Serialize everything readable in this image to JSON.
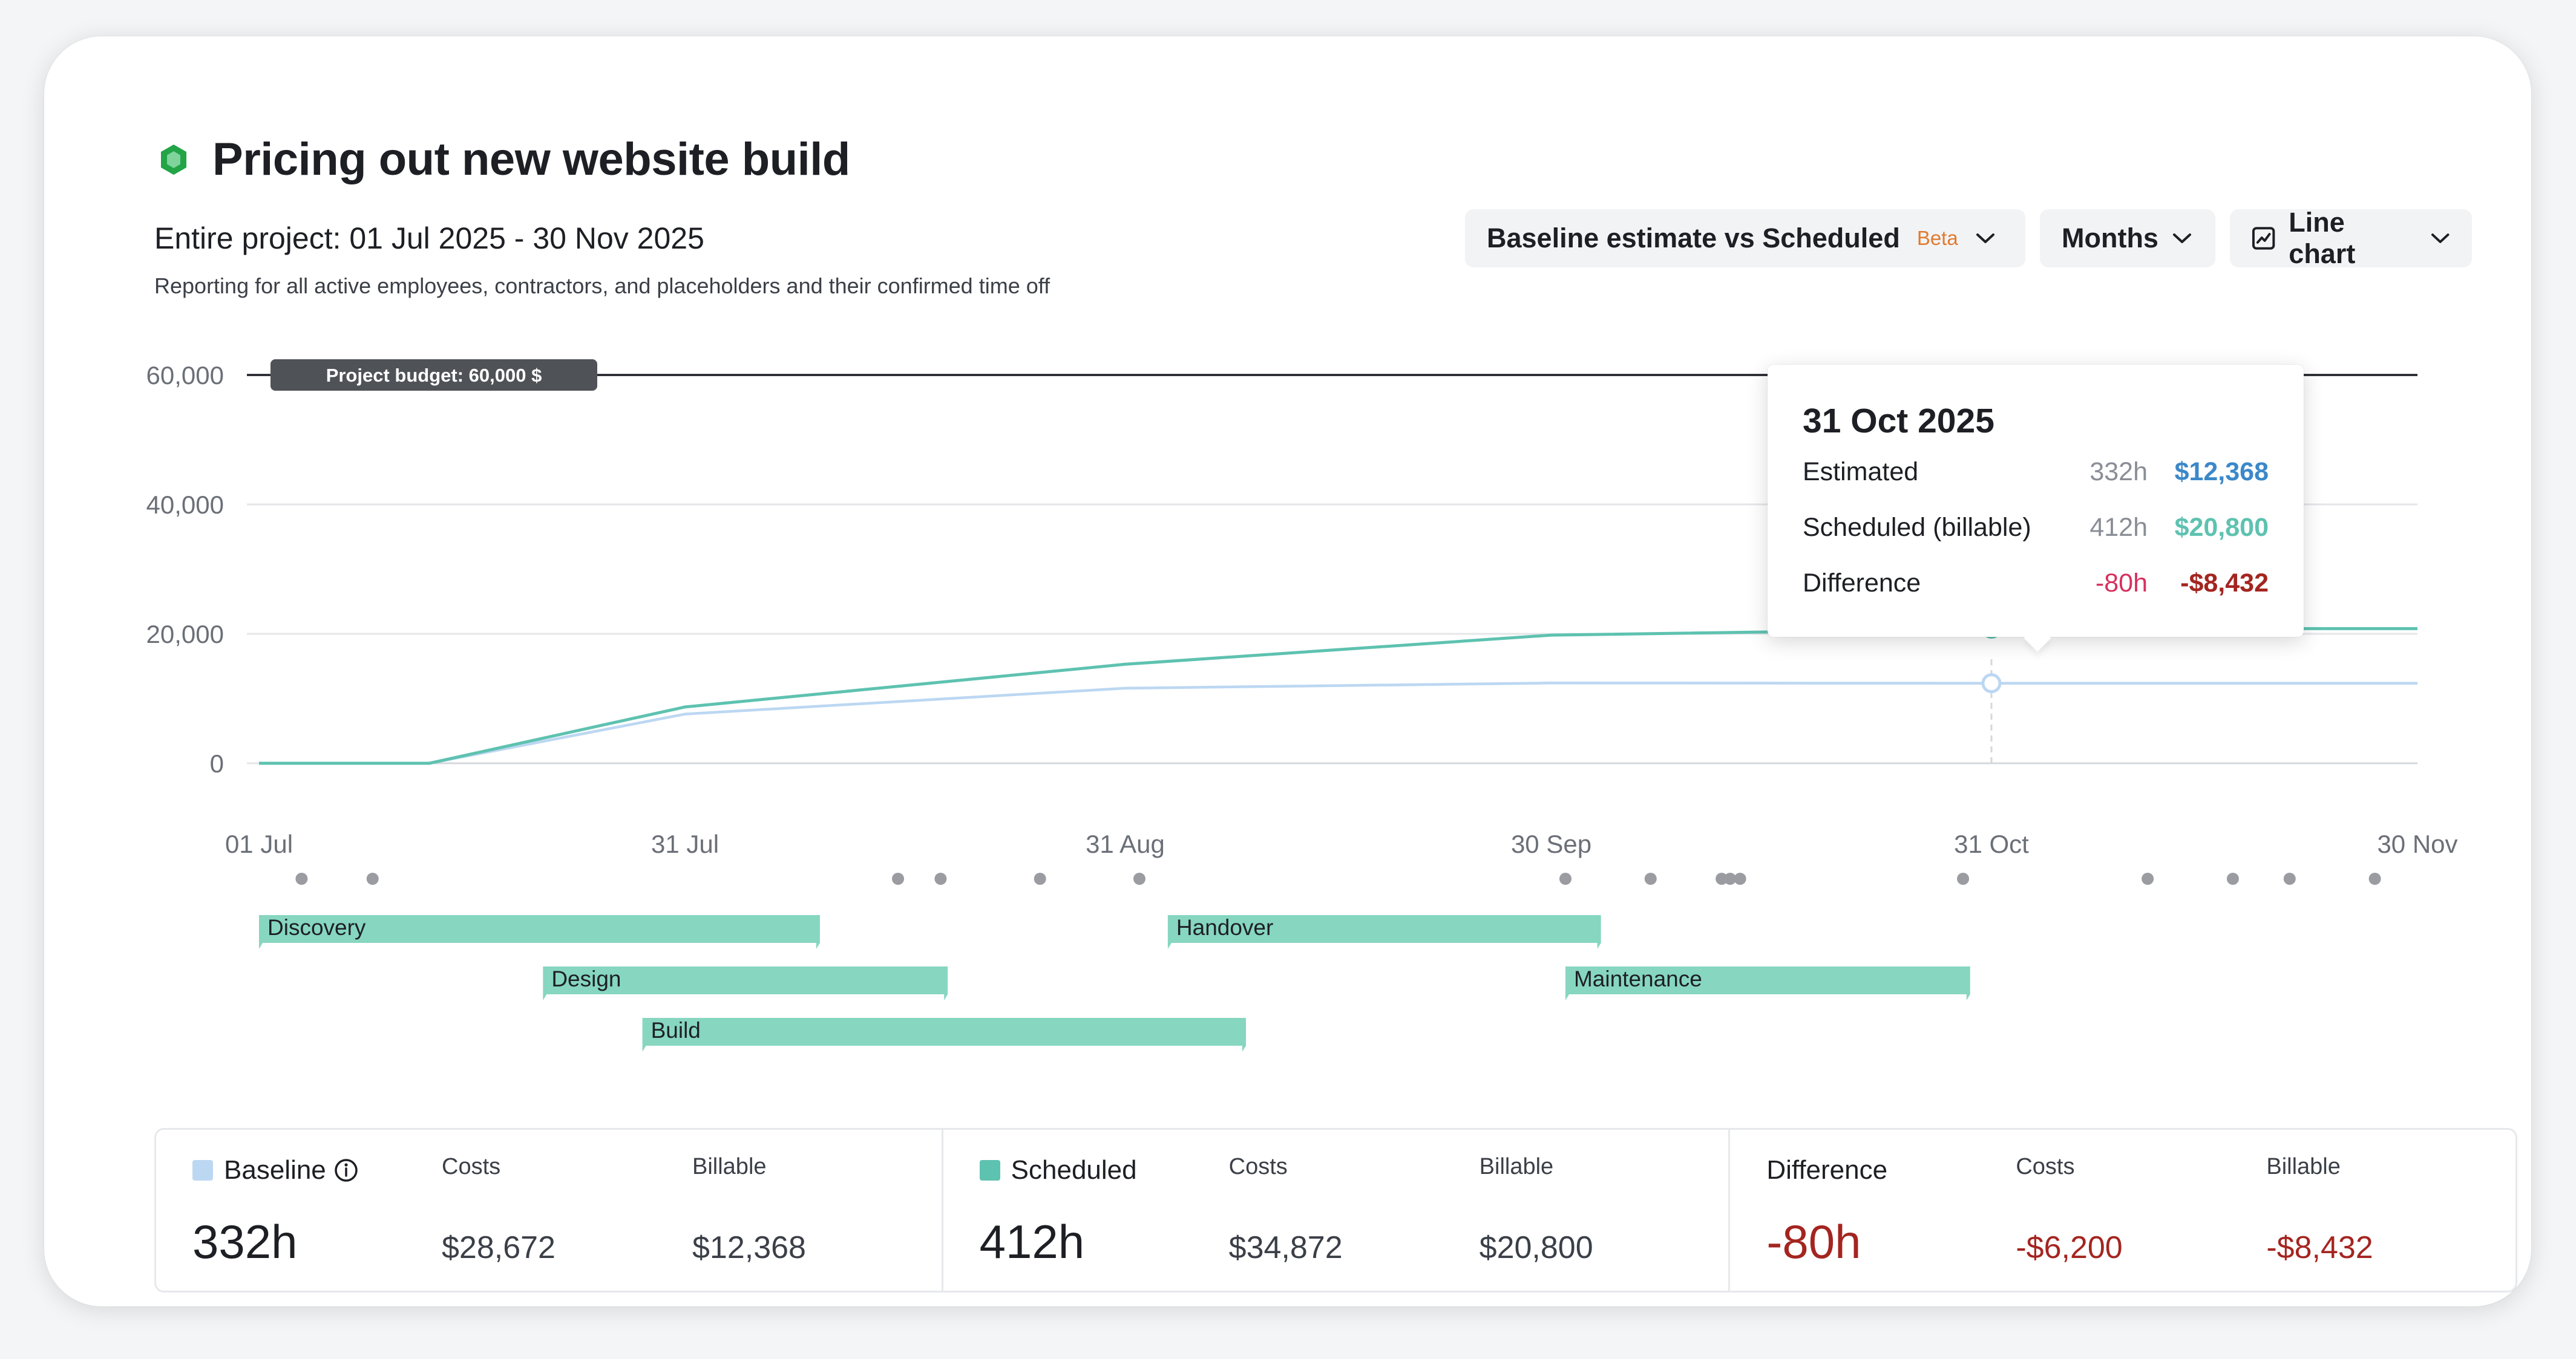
{
  "header": {
    "title": "Pricing out new website build",
    "subtitle": "Entire project: 01 Jul 2025 - 30 Nov 2025",
    "description": "Reporting for all active employees, contractors, and placeholders and their confirmed time off"
  },
  "controls": {
    "comparison": {
      "label": "Baseline estimate vs Scheduled",
      "badge": "Beta"
    },
    "interval": {
      "label": "Months"
    },
    "chart_type": {
      "label": "Line chart"
    }
  },
  "colors": {
    "scheduled": "#5ec2b0",
    "baseline": "#bcd7f2",
    "phase": "#86d6c0",
    "budget_line": "#1d1f24",
    "negative": "#a42520",
    "estimated_money": "#3b88c9",
    "scheduled_money": "#5ec2b0",
    "diff_hours": "#d6305e"
  },
  "chart_data": {
    "type": "line",
    "x": [
      "01 Jul",
      "31 Jul",
      "31 Aug",
      "30 Sep",
      "31 Oct",
      "30 Nov"
    ],
    "ylim": [
      0,
      60000
    ],
    "yticks": [
      "0",
      "20,000",
      "40,000",
      "60,000"
    ],
    "budget": {
      "value": 60000,
      "label": "Project budget: 60,000 $"
    },
    "series": [
      {
        "name": "Scheduled",
        "points": [
          [
            0,
            0
          ],
          [
            12,
            0
          ],
          [
            30,
            8700
          ],
          [
            61,
            15300
          ],
          [
            91,
            19800
          ],
          [
            122,
            20800
          ],
          [
            152,
            20800
          ]
        ]
      },
      {
        "name": "Baseline",
        "points": [
          [
            0,
            0
          ],
          [
            12,
            0
          ],
          [
            30,
            7600
          ],
          [
            61,
            11600
          ],
          [
            91,
            12400
          ],
          [
            122,
            12368
          ],
          [
            152,
            12368
          ]
        ]
      }
    ],
    "x_day_ticks": [
      0,
      30,
      61,
      91,
      122,
      152
    ],
    "event_dots": [
      3,
      8,
      45,
      48,
      55,
      62,
      92,
      98,
      103,
      103.6,
      104.3,
      120,
      133,
      139,
      143,
      149
    ],
    "phases": [
      {
        "name": "Discovery",
        "start": 0,
        "end": 39.5,
        "row": 0
      },
      {
        "name": "Design",
        "start": 20,
        "end": 48.5,
        "row": 1
      },
      {
        "name": "Build",
        "start": 27,
        "end": 69.5,
        "row": 2
      },
      {
        "name": "Handover",
        "start": 64,
        "end": 94.5,
        "row": 0
      },
      {
        "name": "Maintenance",
        "start": 92,
        "end": 120.5,
        "row": 1
      }
    ],
    "hover_day": 122
  },
  "tooltip": {
    "date": "31 Oct 2025",
    "rows": [
      {
        "label": "Estimated",
        "hours": "332h",
        "money": "$12,368"
      },
      {
        "label": "Scheduled (billable)",
        "hours": "412h",
        "money": "$20,800"
      },
      {
        "label": "Difference",
        "hours": "-80h",
        "money": "-$8,432"
      }
    ]
  },
  "summary": {
    "baseline": {
      "label": "Baseline",
      "hours": "332h",
      "costs_label": "Costs",
      "costs": "$28,672",
      "billable_label": "Billable",
      "billable": "$12,368"
    },
    "scheduled": {
      "label": "Scheduled",
      "hours": "412h",
      "costs_label": "Costs",
      "costs": "$34,872",
      "billable_label": "Billable",
      "billable": "$20,800"
    },
    "difference": {
      "label": "Difference",
      "hours": "-80h",
      "costs_label": "Costs",
      "costs": "-$6,200",
      "billable_label": "Billable",
      "billable": "-$8,432"
    }
  }
}
